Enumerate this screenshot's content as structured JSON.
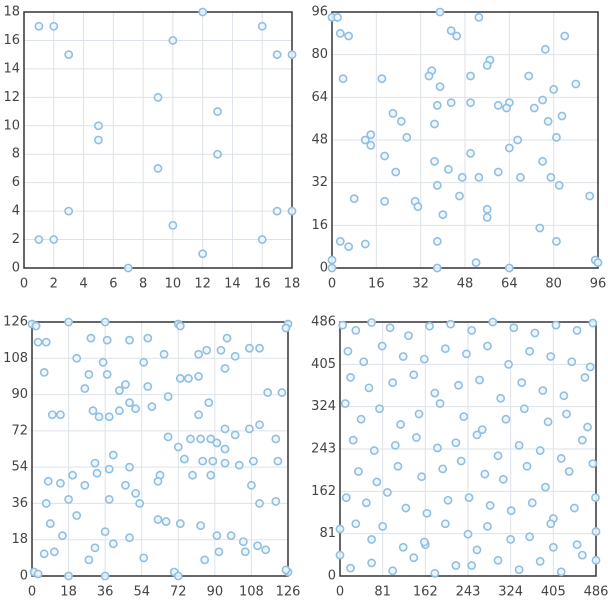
{
  "chart_data": [
    {
      "type": "scatter",
      "color": "#8fbfe3",
      "grid": true,
      "xlim": [
        0,
        18
      ],
      "ylim": [
        0,
        18
      ],
      "xticks": [
        0,
        2,
        4,
        6,
        8,
        10,
        12,
        14,
        16,
        18
      ],
      "yticks": [
        0,
        2,
        4,
        6,
        8,
        10,
        12,
        14,
        16,
        18
      ],
      "x": [
        1,
        2,
        3,
        12,
        16,
        17,
        18,
        10,
        9,
        13,
        5,
        5,
        13,
        9,
        3,
        1,
        2,
        10,
        17,
        18,
        16,
        12,
        7
      ],
      "values": [
        17,
        17,
        15,
        18,
        17,
        15,
        15,
        16,
        12,
        11,
        10,
        9,
        8,
        7,
        4,
        2,
        2,
        3,
        4,
        4,
        2,
        1,
        0
      ]
    },
    {
      "type": "scatter",
      "color": "#8fbfe3",
      "grid": true,
      "xlim": [
        0,
        96
      ],
      "ylim": [
        0,
        96
      ],
      "xticks": [
        0,
        16,
        32,
        48,
        64,
        80,
        96
      ],
      "yticks": [
        0,
        16,
        32,
        48,
        64,
        80,
        96
      ],
      "x": [
        0,
        2,
        3,
        6,
        39,
        53,
        43,
        45,
        84,
        77,
        57,
        56,
        36,
        35,
        4,
        18,
        50,
        71,
        88,
        39,
        80,
        43,
        38,
        60,
        64,
        76,
        73,
        50,
        22,
        83,
        25,
        37,
        78,
        14,
        12,
        14,
        27,
        64,
        67,
        81,
        19,
        50,
        76,
        37,
        42,
        23,
        47,
        60,
        68,
        79,
        38,
        53,
        82,
        46,
        30,
        19,
        8,
        56,
        93,
        40,
        56,
        75,
        38,
        12,
        3,
        81,
        52,
        0,
        0,
        38,
        64,
        95,
        96,
        31,
        63,
        6
      ],
      "values": [
        94,
        94,
        88,
        87,
        96,
        94,
        89,
        87,
        87,
        82,
        78,
        76,
        74,
        72,
        71,
        71,
        72,
        72,
        69,
        68,
        67,
        62,
        61,
        61,
        62,
        63,
        60,
        62,
        58,
        57,
        55,
        54,
        55,
        50,
        48,
        46,
        49,
        45,
        48,
        49,
        42,
        43,
        40,
        40,
        37,
        36,
        34,
        36,
        34,
        34,
        31,
        34,
        31,
        27,
        25,
        25,
        26,
        22,
        27,
        20,
        19,
        15,
        10,
        9,
        10,
        10,
        2,
        3,
        0,
        0,
        0,
        3,
        2,
        23,
        60,
        8
      ]
    },
    {
      "type": "scatter",
      "color": "#8fbfe3",
      "grid": true,
      "xlim": [
        0,
        126
      ],
      "ylim": [
        0,
        126
      ],
      "xticks": [
        0,
        18,
        36,
        54,
        72,
        90,
        108,
        126
      ],
      "yticks": [
        0,
        18,
        36,
        54,
        72,
        90,
        108,
        126
      ],
      "x": [
        0,
        2,
        18,
        36,
        72,
        73,
        126,
        125,
        3,
        7,
        29,
        37,
        48,
        57,
        96,
        22,
        35,
        55,
        65,
        82,
        86,
        93,
        100,
        107,
        112,
        6,
        28,
        37,
        73,
        77,
        82,
        95,
        26,
        43,
        46,
        57,
        67,
        87,
        116,
        123,
        48,
        43,
        51,
        59,
        30,
        33,
        82,
        38,
        10,
        14,
        112,
        107,
        95,
        100,
        78,
        83,
        88,
        67,
        72,
        91,
        95,
        120,
        40,
        31,
        84,
        89,
        95,
        75,
        102,
        109,
        121,
        20,
        32,
        38,
        48,
        63,
        79,
        62,
        88,
        8,
        14,
        26,
        108,
        46,
        51,
        38,
        112,
        120,
        7,
        53,
        18,
        22,
        62,
        66,
        73,
        83,
        98,
        91,
        104,
        111,
        105,
        115,
        92,
        15,
        9,
        36,
        48,
        6,
        11,
        31,
        40,
        28,
        55,
        85,
        70,
        1,
        3,
        18,
        36,
        72,
        126,
        125
      ],
      "values": [
        125,
        124,
        126,
        126,
        125,
        124,
        125,
        123,
        116,
        116,
        118,
        117,
        117,
        118,
        118,
        108,
        106,
        106,
        110,
        110,
        112,
        112,
        109,
        113,
        113,
        101,
        100,
        100,
        98,
        98,
        99,
        103,
        93,
        92,
        95,
        94,
        89,
        86,
        91,
        91,
        86,
        82,
        83,
        84,
        82,
        79,
        80,
        79,
        80,
        80,
        75,
        73,
        73,
        70,
        68,
        68,
        68,
        69,
        64,
        66,
        63,
        68,
        60,
        56,
        57,
        57,
        56,
        58,
        55,
        57,
        57,
        50,
        51,
        53,
        54,
        50,
        50,
        47,
        50,
        47,
        46,
        45,
        45,
        45,
        41,
        38,
        36,
        37,
        36,
        36,
        38,
        30,
        28,
        27,
        26,
        25,
        20,
        20,
        17,
        15,
        12,
        13,
        12,
        20,
        26,
        22,
        19,
        11,
        12,
        14,
        16,
        8,
        9,
        8,
        2,
        2,
        1,
        0,
        0,
        0,
        2,
        3
      ]
    },
    {
      "type": "scatter",
      "color": "#8fbfe3",
      "grid": true,
      "xlim": [
        0,
        486
      ],
      "ylim": [
        0,
        486
      ],
      "xticks": [
        0,
        81,
        162,
        243,
        324,
        405,
        486
      ],
      "yticks": [
        0,
        81,
        162,
        243,
        324,
        405,
        486
      ],
      "x": [
        5,
        30,
        60,
        95,
        130,
        170,
        210,
        250,
        290,
        330,
        370,
        410,
        450,
        480,
        15,
        45,
        80,
        120,
        160,
        200,
        240,
        280,
        320,
        360,
        400,
        440,
        475,
        20,
        55,
        100,
        140,
        180,
        225,
        265,
        305,
        345,
        385,
        425,
        465,
        10,
        40,
        75,
        115,
        150,
        190,
        235,
        270,
        315,
        350,
        395,
        430,
        470,
        25,
        65,
        105,
        145,
        185,
        220,
        260,
        300,
        340,
        380,
        420,
        460,
        35,
        70,
        110,
        155,
        195,
        230,
        275,
        310,
        355,
        390,
        435,
        480,
        12,
        50,
        90,
        125,
        165,
        205,
        245,
        285,
        325,
        365,
        405,
        445,
        485,
        0,
        243,
        162,
        81,
        324,
        405,
        486,
        0,
        486,
        250,
        260,
        20,
        60,
        100,
        140,
        180,
        220,
        300,
        340,
        380,
        420,
        460,
        30,
        200,
        280,
        450,
        160,
        120,
        360,
        60,
        400
      ],
      "values": [
        480,
        470,
        485,
        475,
        460,
        478,
        482,
        470,
        486,
        475,
        465,
        480,
        470,
        484,
        430,
        410,
        440,
        420,
        415,
        435,
        425,
        440,
        405,
        430,
        420,
        410,
        400,
        380,
        360,
        370,
        385,
        350,
        365,
        375,
        340,
        370,
        355,
        345,
        380,
        330,
        300,
        320,
        290,
        310,
        330,
        305,
        280,
        300,
        320,
        295,
        310,
        285,
        260,
        240,
        250,
        265,
        245,
        255,
        270,
        230,
        250,
        240,
        225,
        260,
        200,
        180,
        210,
        190,
        205,
        220,
        195,
        185,
        210,
        170,
        200,
        215,
        150,
        140,
        160,
        130,
        120,
        145,
        150,
        135,
        125,
        140,
        110,
        130,
        150,
        90,
        80,
        60,
        95,
        70,
        55,
        85,
        40,
        30,
        20,
        50,
        15,
        25,
        10,
        35,
        5,
        20,
        30,
        12,
        28,
        8,
        40,
        100,
        100,
        95,
        60,
        65,
        55,
        75,
        70,
        100
      ]
    }
  ]
}
